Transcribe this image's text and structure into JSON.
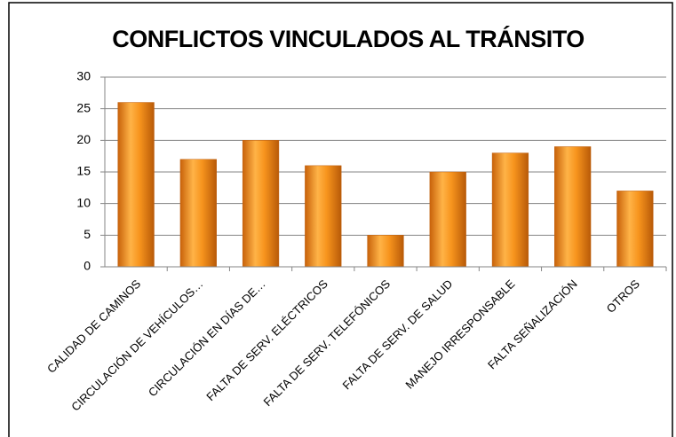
{
  "chart_data": {
    "type": "bar",
    "title": "CONFLICTOS VINCULADOS AL TRÁNSITO",
    "categories": [
      "CALIDAD DE CAMINOS",
      "CIRCULACIÓN DE VEHÍCULOS…",
      "CIRCULACIÓN EN DÍAS DE…",
      "FALTA DE SERV. ELÉCTRICOS",
      "FALTA DE SERV. TELEFÓNICOS",
      "FALTA DE SERV. DE SALUD",
      "MANEJO IRRESPONSABLE",
      "FALTA SEÑALIZACIÓN",
      "OTROS"
    ],
    "values": [
      26,
      17,
      20,
      16,
      5,
      15,
      18,
      19,
      12
    ],
    "color": "#f7941d",
    "ylim": [
      0,
      30
    ],
    "yticks": [
      0,
      5,
      10,
      15,
      20,
      25,
      30
    ],
    "grid": true
  }
}
